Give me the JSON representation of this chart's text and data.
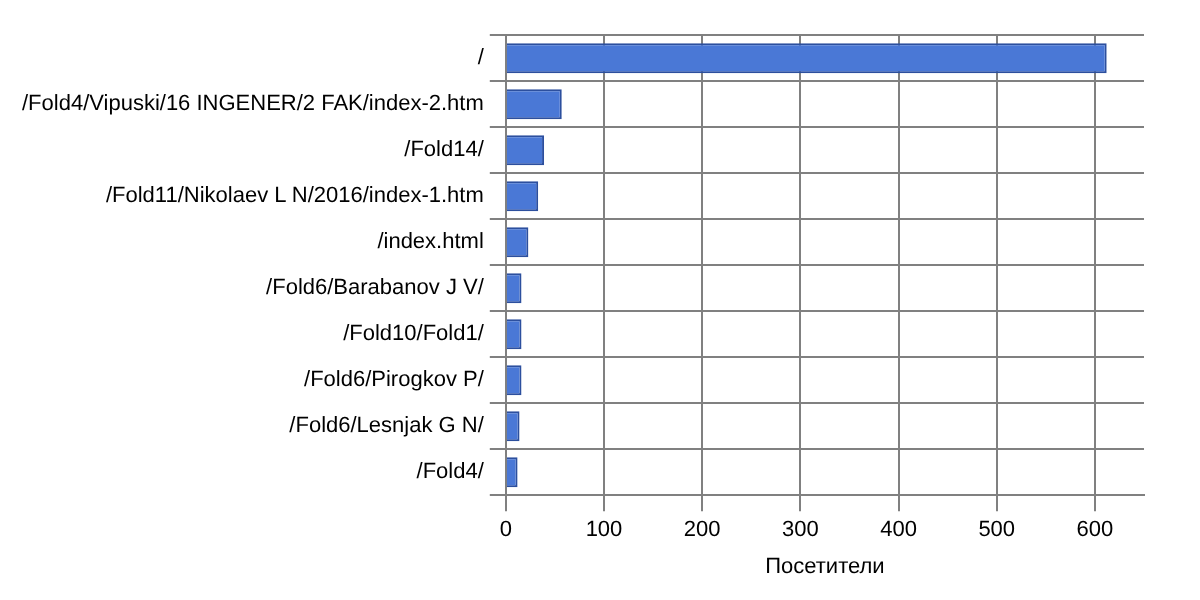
{
  "chart_data": {
    "type": "bar",
    "orientation": "horizontal",
    "xlabel": "Посетители",
    "categories": [
      "/",
      "/Fold4/Vipuski/16 INGENER/2 FAK/index-2.htm",
      "/Fold14/",
      "/Fold11/Nikolaev L N/2016/index-1.htm",
      "/index.html",
      "/Fold6/Barabanov J V/",
      "/Fold10/Fold1/",
      "/Fold6/Pirogkov P/",
      "/Fold6/Lesnjak G N/",
      "/Fold4/"
    ],
    "values": [
      612,
      57,
      39,
      33,
      23,
      16,
      16,
      16,
      14,
      12
    ],
    "color": "#4a78d6",
    "xlim": [
      0,
      650
    ],
    "xticks": [
      0,
      100,
      200,
      300,
      400,
      500,
      600
    ],
    "grid": true
  }
}
